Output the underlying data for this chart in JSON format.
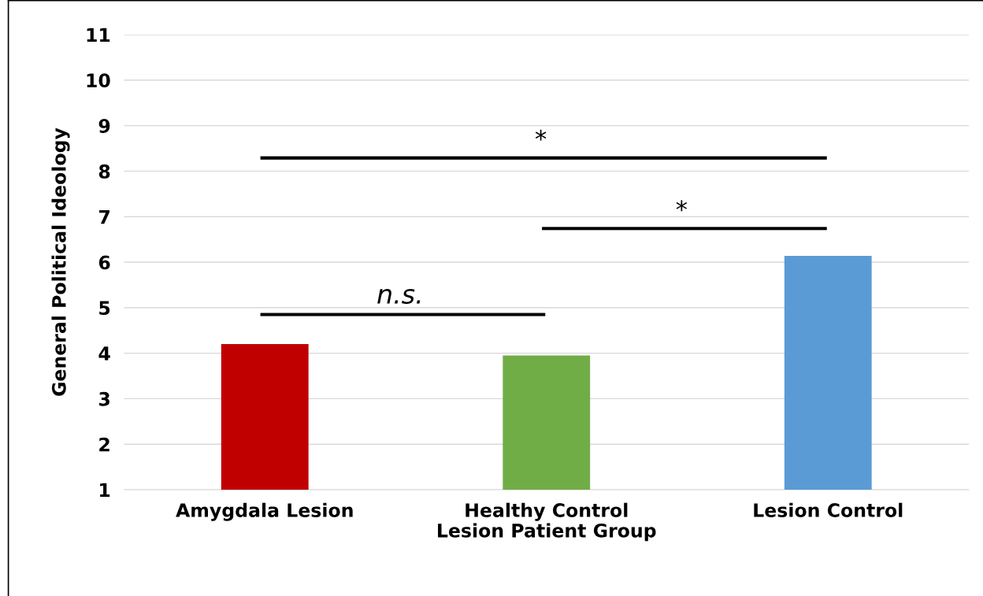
{
  "chart_data": {
    "type": "bar",
    "xlabel": "Lesion Patient Group",
    "ylabel": "General Political Ideology",
    "categories": [
      "Amygdala Lesion",
      "Healthy Control",
      "Lesion Control"
    ],
    "values": [
      4.2,
      3.95,
      6.14
    ],
    "colors": [
      "#c00000",
      "#70ad47",
      "#5b9bd5"
    ],
    "ylim": [
      1,
      11
    ],
    "yticks": [
      1,
      2,
      3,
      4,
      5,
      6,
      7,
      8,
      9,
      10,
      11
    ],
    "grid": "y",
    "annotations": [
      "n.s.",
      "*",
      "*"
    ]
  }
}
